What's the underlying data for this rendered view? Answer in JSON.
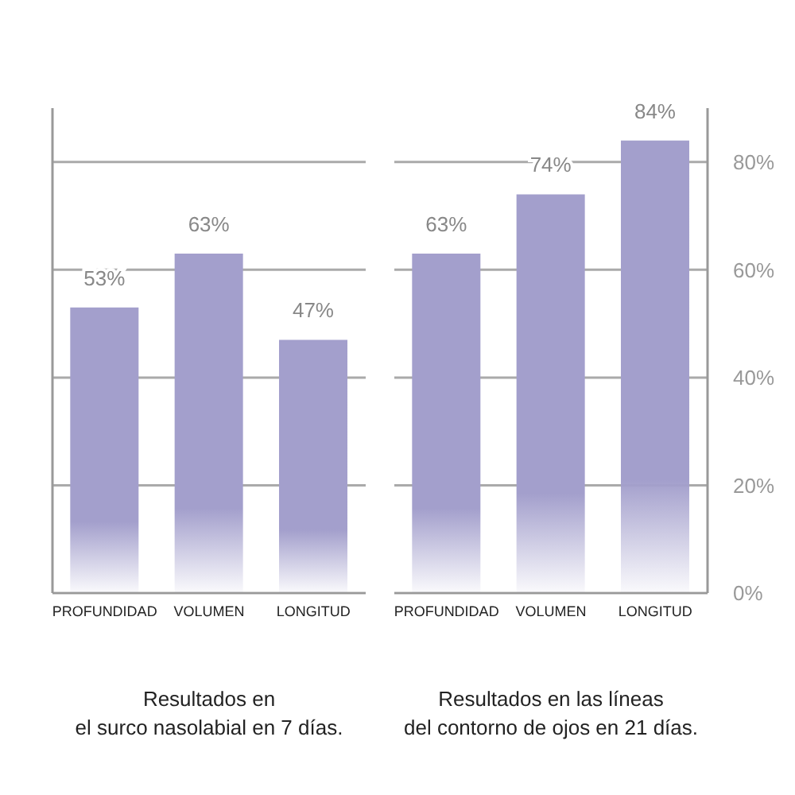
{
  "chart_data": [
    {
      "type": "bar",
      "xlabel": "Resultados en\nel surco nasolabial en 7 días.",
      "categories": [
        "PROFUNDIDAD",
        "VOLUMEN",
        "LONGITUD"
      ],
      "values": [
        53,
        63,
        47
      ],
      "value_labels": [
        "53%",
        "63%",
        "47%"
      ],
      "color": "#a39fcc",
      "ylim": [
        0,
        90
      ],
      "yticks": [
        {
          "value": 0,
          "label": null
        },
        {
          "value": 20,
          "label": null
        },
        {
          "value": 40,
          "label": null
        },
        {
          "value": 60,
          "label": null
        },
        {
          "value": 80,
          "label": null
        }
      ],
      "grid": "y",
      "tick_labels": "x"
    },
    {
      "type": "bar",
      "xlabel": "Resultados en las líneas\ndel contorno de ojos en 21 días.",
      "categories": [
        "PROFUNDIDAD",
        "VOLUMEN",
        "LONGITUD"
      ],
      "values": [
        63,
        74,
        84
      ],
      "value_labels": [
        "63%",
        "74%",
        "84%"
      ],
      "color": "#a39fcc",
      "ylim": [
        0,
        90
      ],
      "yticks": [
        {
          "value": 0,
          "label": "0%"
        },
        {
          "value": 20,
          "label": "20%"
        },
        {
          "value": 40,
          "label": "40%"
        },
        {
          "value": 60,
          "label": "60%"
        },
        {
          "value": 80,
          "label": "80%"
        }
      ],
      "grid": "y"
    }
  ]
}
